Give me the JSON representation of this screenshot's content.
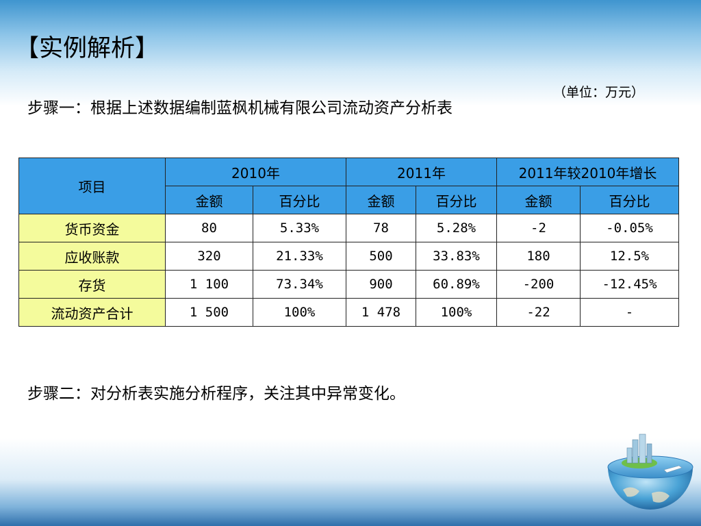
{
  "title": "【实例解析】",
  "step1": "步骤一：根据上述数据编制蓝枫机械有限公司流动资产分析表",
  "unit": "（单位：万元）",
  "step2": "步骤二：对分析表实施分析程序，关注其中异常变化。",
  "table": {
    "item_header": "项目",
    "groups": [
      "2010年",
      "2011年",
      "2011年较2010年增长"
    ],
    "subheaders": [
      "金额",
      "百分比",
      "金额",
      "百分比",
      "金额",
      "百分比"
    ],
    "rows": [
      {
        "label": "货币资金",
        "cells": [
          "80",
          "5.33%",
          "78",
          "5.28%",
          "-2",
          "-0.05%"
        ]
      },
      {
        "label": "应收账款",
        "cells": [
          "320",
          "21.33%",
          "500",
          "33.83%",
          "180",
          "12.5%"
        ]
      },
      {
        "label": "存货",
        "cells": [
          "1 100",
          "73.34%",
          "900",
          "60.89%",
          "-200",
          "-12.45%"
        ]
      },
      {
        "label": "流动资产合计",
        "cells": [
          "1 500",
          "100%",
          "1 478",
          "100%",
          "-22",
          "-"
        ]
      }
    ]
  },
  "colors": {
    "header_blue": "#3a9ee6",
    "row_label_yellow": "#f4fb9c"
  },
  "decoration": "globe-city-icon"
}
